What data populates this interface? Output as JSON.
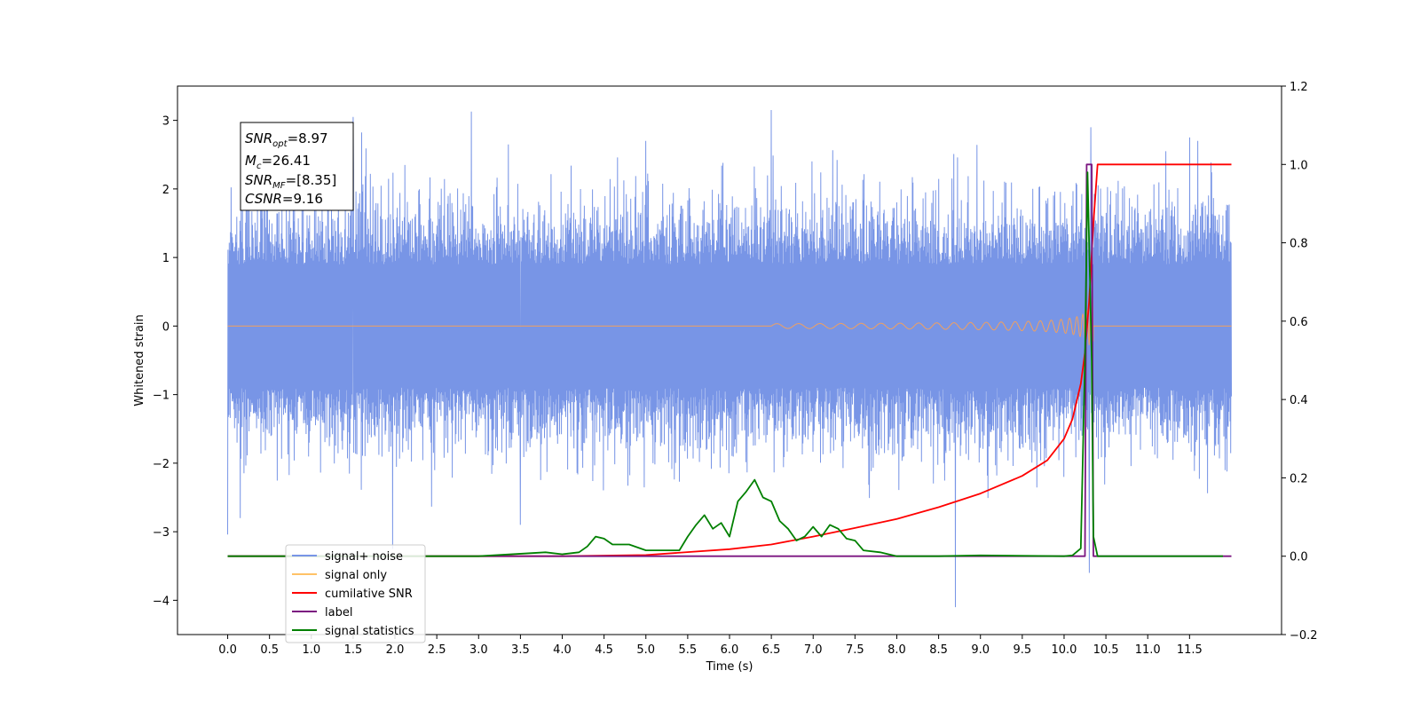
{
  "chart_data": {
    "type": "line",
    "xlabel": "Time (s)",
    "ylabel": "Whitened strain",
    "xlim": [
      -0.6,
      12.6
    ],
    "ylim": [
      -4.5,
      3.5
    ],
    "y2lim": [
      -0.2,
      1.2
    ],
    "x_ticks": [
      0.0,
      0.5,
      1.0,
      1.5,
      2.0,
      2.5,
      3.0,
      3.5,
      4.0,
      4.5,
      5.0,
      5.5,
      6.0,
      6.5,
      7.0,
      7.5,
      8.0,
      8.5,
      9.0,
      9.5,
      10.0,
      10.5,
      11.0,
      11.5
    ],
    "x_tick_labels": [
      "0.0",
      "0.5",
      "1.0",
      "1.5",
      "2.0",
      "2.5",
      "3.0",
      "3.5",
      "4.0",
      "4.5",
      "5.0",
      "5.5",
      "6.0",
      "6.5",
      "7.0",
      "7.5",
      "8.0",
      "8.5",
      "9.0",
      "9.5",
      "10.0",
      "10.5",
      "11.0",
      "11.5"
    ],
    "y_ticks": [
      3,
      2,
      1,
      0,
      -1,
      -2,
      -3,
      -4
    ],
    "y_tick_labels": [
      "3",
      "2",
      "1",
      "0",
      "−1",
      "−2",
      "−3",
      "−4"
    ],
    "y2_ticks": [
      1.2,
      1.0,
      0.8,
      0.6,
      0.4,
      0.2,
      0.0,
      -0.2
    ],
    "y2_tick_labels": [
      "1.2",
      "1.0",
      "0.8",
      "0.6",
      "0.4",
      "0.2",
      "0.0",
      "−0.2"
    ],
    "grid": false,
    "legend_position": "lower-left",
    "series": [
      {
        "name": "signal+ noise",
        "color": "#7895e6",
        "axis": "left",
        "x_range": [
          0.0,
          12.0
        ],
        "typical_envelope": [
          -1.8,
          1.8
        ],
        "spikes": [
          [
            0.15,
            -2.8
          ],
          [
            1.5,
            3.05
          ],
          [
            3.5,
            -2.9
          ],
          [
            5.0,
            2.7
          ],
          [
            6.5,
            3.15
          ],
          [
            8.7,
            -4.1
          ],
          [
            10.3,
            -3.6
          ],
          [
            10.32,
            2.9
          ],
          [
            11.5,
            2.75
          ],
          [
            11.6,
            2.7
          ]
        ]
      },
      {
        "name": "signal only",
        "color": "#f0a060",
        "axis": "left",
        "chirp_start": 6.5,
        "merger": 10.35,
        "peak_amplitude": 0.45
      },
      {
        "name": "cumilative SNR",
        "color": "#ff0000",
        "axis": "right",
        "x": [
          0.0,
          4.0,
          5.0,
          6.0,
          6.5,
          7.0,
          7.5,
          8.0,
          8.5,
          9.0,
          9.5,
          9.8,
          10.0,
          10.1,
          10.2,
          10.25,
          10.3,
          10.35,
          10.4,
          12.0
        ],
        "y": [
          0.0,
          0.0,
          0.003,
          0.018,
          0.03,
          0.05,
          0.072,
          0.095,
          0.125,
          0.16,
          0.205,
          0.245,
          0.3,
          0.35,
          0.44,
          0.52,
          0.65,
          0.85,
          1.0,
          1.0
        ]
      },
      {
        "name": "label",
        "color": "#7b1580",
        "axis": "right",
        "x": [
          0.0,
          10.25,
          10.27,
          10.33,
          10.35,
          12.0
        ],
        "y": [
          0.0,
          0.0,
          1.0,
          1.0,
          0.0,
          0.0
        ]
      },
      {
        "name": "signal statistics",
        "color": "#008000",
        "axis": "right",
        "x": [
          0.0,
          3.0,
          3.8,
          4.0,
          4.2,
          4.3,
          4.4,
          4.5,
          4.6,
          4.8,
          5.0,
          5.2,
          5.4,
          5.5,
          5.6,
          5.7,
          5.8,
          5.9,
          6.0,
          6.1,
          6.2,
          6.3,
          6.4,
          6.5,
          6.6,
          6.7,
          6.8,
          6.9,
          7.0,
          7.1,
          7.2,
          7.3,
          7.4,
          7.5,
          7.6,
          7.8,
          8.0,
          8.5,
          9.0,
          10.0,
          10.1,
          10.2,
          10.25,
          10.28,
          10.3,
          10.33,
          10.35,
          10.4,
          11.9
        ],
        "y": [
          0.0,
          0.0,
          0.01,
          0.005,
          0.01,
          0.025,
          0.05,
          0.045,
          0.03,
          0.03,
          0.015,
          0.015,
          0.015,
          0.05,
          0.08,
          0.105,
          0.07,
          0.085,
          0.05,
          0.14,
          0.165,
          0.195,
          0.15,
          0.14,
          0.09,
          0.07,
          0.04,
          0.05,
          0.075,
          0.05,
          0.08,
          0.07,
          0.045,
          0.04,
          0.015,
          0.01,
          0.0,
          0.0,
          0.002,
          0.0,
          0.002,
          0.02,
          0.5,
          0.98,
          0.8,
          0.5,
          0.05,
          0.0,
          0.0
        ]
      }
    ]
  },
  "annotation": {
    "line1_main": "SNR",
    "line1_sub": "opt",
    "line1_val": "=8.97",
    "line2_main": "M",
    "line2_sub": "c",
    "line2_val": "=26.41",
    "line3_main": "SNR",
    "line3_sub": "MF",
    "line3_val": "=[8.35]",
    "line4_main": "CSNR",
    "line4_val": "=9.16"
  },
  "legend": {
    "items": [
      {
        "label": "signal+ noise",
        "color": "#7895e6"
      },
      {
        "label": "signal only",
        "color": "#ffc266"
      },
      {
        "label": "cumilative SNR",
        "color": "#ff0000"
      },
      {
        "label": "label",
        "color": "#7b1580"
      },
      {
        "label": "signal statistics",
        "color": "#008000"
      }
    ]
  }
}
